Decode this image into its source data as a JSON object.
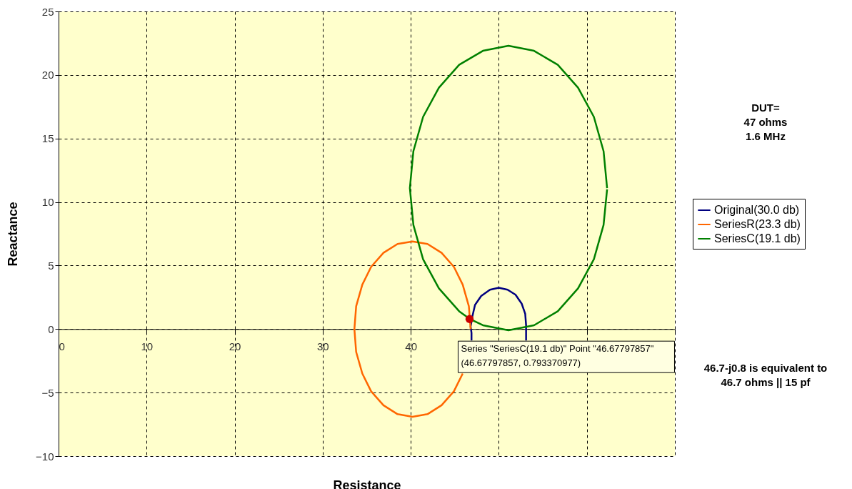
{
  "chart_data": {
    "type": "line",
    "xlabel": "Resistance",
    "ylabel": "Reactance",
    "xlim": [
      0,
      70
    ],
    "xticks": [
      0,
      10,
      20,
      30,
      40,
      {
        "value": 50,
        "label": null
      },
      {
        "value": 60,
        "label": null
      },
      {
        "value": 70,
        "label": null
      }
    ],
    "ylim": [
      -10,
      25
    ],
    "yticks": [
      -10,
      -5,
      0,
      5,
      10,
      15,
      20,
      25
    ],
    "grid": true,
    "legend": "right",
    "marker": "none",
    "line_style": "solid",
    "series": [
      {
        "name": "Original(30.0 db)",
        "color": "#000080",
        "x": [
          46.9,
          46.9,
          46.8,
          47.0,
          47.3,
          48.0,
          49.0,
          50.0,
          51.0,
          51.9,
          52.6,
          53.0,
          53.1,
          53.1
        ],
        "values": [
          -0.9,
          -0.3,
          0.2,
          1.0,
          1.9,
          2.6,
          3.1,
          3.25,
          3.1,
          2.7,
          2.0,
          1.2,
          0.3,
          -0.9
        ]
      },
      {
        "name": "SeriesR(23.3 db)",
        "color": "#ff6600",
        "x": [
          46.8,
          46.6,
          45.9,
          44.9,
          43.5,
          41.9,
          40.2,
          38.5,
          36.9,
          35.5,
          34.5,
          33.8,
          33.6,
          33.8,
          34.5,
          35.5,
          36.9,
          38.5,
          40.2,
          41.9,
          43.5,
          44.9,
          45.9
        ],
        "values": [
          0,
          1.8,
          3.5,
          4.9,
          6.0,
          6.7,
          6.9,
          6.7,
          6.0,
          4.9,
          3.5,
          1.8,
          0,
          -1.8,
          -3.5,
          -4.9,
          -6.0,
          -6.7,
          -6.9,
          -6.7,
          -6.0,
          -4.9,
          -3.5
        ]
      },
      {
        "name": "SeriesC(19.1 db)",
        "color": "#008000",
        "x": [
          62.3,
          61.9,
          60.8,
          59.0,
          56.7,
          54.0,
          51.1,
          48.2,
          45.5,
          43.2,
          41.4,
          40.3,
          39.9,
          40.3,
          41.4,
          43.2,
          45.5,
          46.7,
          48.2,
          51.1,
          54.0,
          56.7,
          59.0,
          60.8,
          61.9,
          62.3
        ],
        "values": [
          11.1,
          14.0,
          16.7,
          19.0,
          20.8,
          21.9,
          22.3,
          21.9,
          20.8,
          19.0,
          16.7,
          14.0,
          11.1,
          8.2,
          5.5,
          3.2,
          1.4,
          0.8,
          0.3,
          -0.1,
          0.3,
          1.4,
          3.2,
          5.5,
          8.2,
          11.0
        ]
      },
      {
        "type": "scatter",
        "marker": "circle",
        "color": "#cc0000",
        "x": [
          46.68
        ],
        "values": [
          0.79
        ]
      }
    ],
    "annotations": [
      {
        "text": "Series \"SeriesC(19.1 db)\" Point \"46.67797857\"\n(46.67797857, 0.793370977)",
        "x": 46.67797857,
        "y": 0.793370977
      },
      "DUT=\n47 ohms\n1.6 MHz",
      "46.7-j0.8 is equivalent to\n46.7 ohms || 15 pf"
    ]
  }
}
